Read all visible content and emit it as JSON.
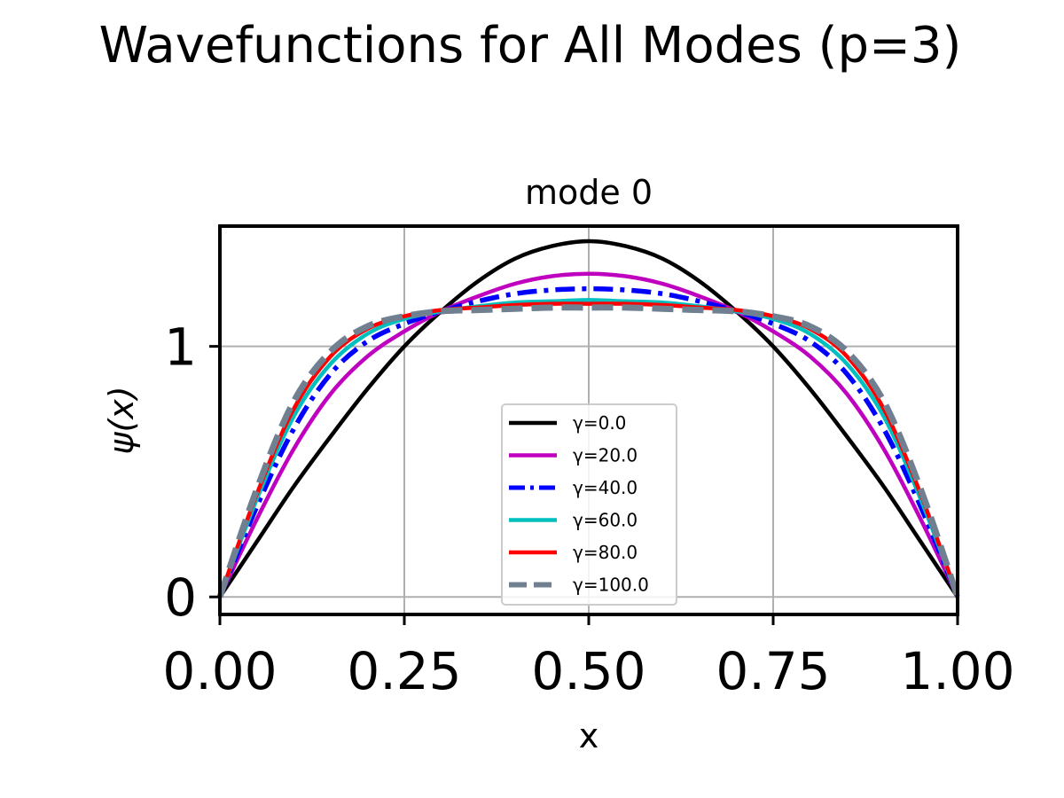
{
  "figure": {
    "suptitle": "Wavefunctions for All Modes (p=3)"
  },
  "chart_data": {
    "type": "line",
    "title": "mode 0",
    "xlabel": "x",
    "ylabel": "ψ(x)",
    "xlim": [
      0.0,
      1.0
    ],
    "ylim": [
      -0.07,
      1.48
    ],
    "xticks": [
      0.0,
      0.25,
      0.5,
      0.75,
      1.0
    ],
    "xtick_labels": [
      "0.00",
      "0.25",
      "0.50",
      "0.75",
      "1.00"
    ],
    "yticks": [
      0,
      1
    ],
    "ytick_labels": [
      "0",
      "1"
    ],
    "grid": true,
    "legend_position": "lower center",
    "x": [
      0.0,
      0.05,
      0.1,
      0.15,
      0.2,
      0.25,
      0.3,
      0.35,
      0.4,
      0.45,
      0.5,
      0.55,
      0.6,
      0.65,
      0.7,
      0.75,
      0.8,
      0.85,
      0.9,
      0.95,
      1.0
    ],
    "series": [
      {
        "name": "γ=0.0",
        "color": "#000000",
        "dash": "solid",
        "values": [
          0.0,
          0.22,
          0.44,
          0.64,
          0.83,
          1.0,
          1.14,
          1.26,
          1.35,
          1.4,
          1.42,
          1.4,
          1.35,
          1.26,
          1.14,
          1.0,
          0.83,
          0.64,
          0.44,
          0.22,
          0.0
        ]
      },
      {
        "name": "γ=20.0",
        "color": "#bf00bf",
        "dash": "solid",
        "values": [
          0.0,
          0.31,
          0.59,
          0.81,
          0.96,
          1.06,
          1.14,
          1.2,
          1.25,
          1.28,
          1.29,
          1.28,
          1.25,
          1.2,
          1.14,
          1.06,
          0.96,
          0.81,
          0.59,
          0.31,
          0.0
        ]
      },
      {
        "name": "γ=40.0",
        "color": "#0000ff",
        "dash": "dashdot",
        "values": [
          0.0,
          0.36,
          0.67,
          0.89,
          1.02,
          1.09,
          1.14,
          1.18,
          1.21,
          1.225,
          1.23,
          1.225,
          1.21,
          1.18,
          1.14,
          1.09,
          1.02,
          0.89,
          0.67,
          0.36,
          0.0
        ]
      },
      {
        "name": "γ=60.0",
        "color": "#00bfbf",
        "dash": "solid",
        "values": [
          0.0,
          0.39,
          0.72,
          0.93,
          1.05,
          1.11,
          1.14,
          1.16,
          1.175,
          1.18,
          1.185,
          1.18,
          1.175,
          1.16,
          1.14,
          1.11,
          1.05,
          0.93,
          0.72,
          0.39,
          0.0
        ]
      },
      {
        "name": "γ=80.0",
        "color": "#ff0000",
        "dash": "solid",
        "values": [
          0.0,
          0.41,
          0.75,
          0.96,
          1.07,
          1.12,
          1.145,
          1.155,
          1.165,
          1.17,
          1.17,
          1.17,
          1.165,
          1.155,
          1.145,
          1.12,
          1.07,
          0.96,
          0.75,
          0.41,
          0.0
        ]
      },
      {
        "name": "γ=100.0",
        "color": "#708090",
        "dash": "dashed",
        "values": [
          0.0,
          0.43,
          0.78,
          0.98,
          1.08,
          1.12,
          1.14,
          1.145,
          1.15,
          1.155,
          1.155,
          1.155,
          1.15,
          1.145,
          1.14,
          1.12,
          1.08,
          0.98,
          0.78,
          0.43,
          0.0
        ]
      }
    ]
  }
}
